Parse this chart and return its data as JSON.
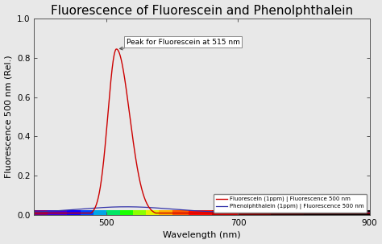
{
  "title": "Fluorescence of Fluorescein and Phenolphthalein",
  "xlabel": "Wavelength (nm)",
  "ylabel": "Fluorescence 500 nm (Rel.)",
  "xlim": [
    390,
    900
  ],
  "ylim": [
    0.0,
    1.0
  ],
  "yticks": [
    0.0,
    0.2,
    0.4,
    0.6,
    0.8,
    1.0
  ],
  "xticks": [
    500,
    700,
    900
  ],
  "fluorescein_peak": 515,
  "fluorescein_peak_value": 0.845,
  "fluorescein_color": "#cc0000",
  "phenol_color": "#3333aa",
  "annotation_text": "Peak for Fluorescein at 515 nm",
  "legend_fluorescein": "Fluorescein (1ppm) | Fluorescence 500 nm",
  "legend_phenol": "Phenolphthalein (1ppm) | Fluorescence 500 nm",
  "background_color": "#e8e8e8",
  "plot_bg_color": "#e8e8e8",
  "title_fontsize": 11,
  "label_fontsize": 8
}
